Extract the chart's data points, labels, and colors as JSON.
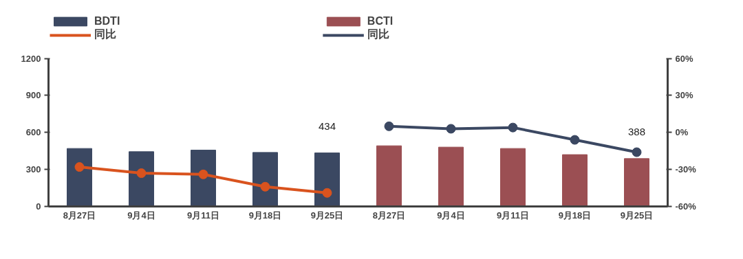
{
  "chart_data": {
    "type": "bar",
    "categories": [
      "8月27日",
      "9月4日",
      "9月11日",
      "9月18日",
      "9月25日",
      "8月27日",
      "9月4日",
      "9月11日",
      "9月18日",
      "9月25日"
    ],
    "series": [
      {
        "name": "BDTI",
        "color": "#3b4862",
        "values": [
          470,
          444,
          457,
          438,
          434,
          null,
          null,
          null,
          null,
          null
        ],
        "value_labels": [
          null,
          null,
          null,
          null,
          "434",
          null,
          null,
          null,
          null,
          null
        ]
      },
      {
        "name": "同比",
        "type": "line",
        "axis": "y2",
        "color": "#d9531e",
        "values": [
          -28,
          -33,
          -34,
          -44,
          -49,
          null,
          null,
          null,
          null,
          null
        ]
      },
      {
        "name": "BCTI",
        "color": "#9b4f53",
        "values": [
          null,
          null,
          null,
          null,
          null,
          492,
          481,
          470,
          420,
          388
        ],
        "value_labels": [
          null,
          null,
          null,
          null,
          null,
          null,
          null,
          null,
          null,
          "388"
        ]
      },
      {
        "name": "同比",
        "type": "line",
        "axis": "y2",
        "color": "#3b4862",
        "values": [
          null,
          null,
          null,
          null,
          null,
          5,
          3,
          4,
          -6,
          -16
        ]
      }
    ],
    "ylim": [
      0,
      1200
    ],
    "yticks": [
      0,
      300,
      600,
      900,
      1200
    ],
    "y2lim": [
      -60,
      60
    ],
    "y2ticks": [
      {
        "value": -60,
        "label": "-60%"
      },
      {
        "value": -30,
        "label": "-30%"
      },
      {
        "value": 0,
        "label": "0%"
      },
      {
        "value": 30,
        "label": "30%"
      },
      {
        "value": 60,
        "label": "60%"
      }
    ],
    "marker": "circle",
    "grid": false,
    "legend": "top"
  }
}
